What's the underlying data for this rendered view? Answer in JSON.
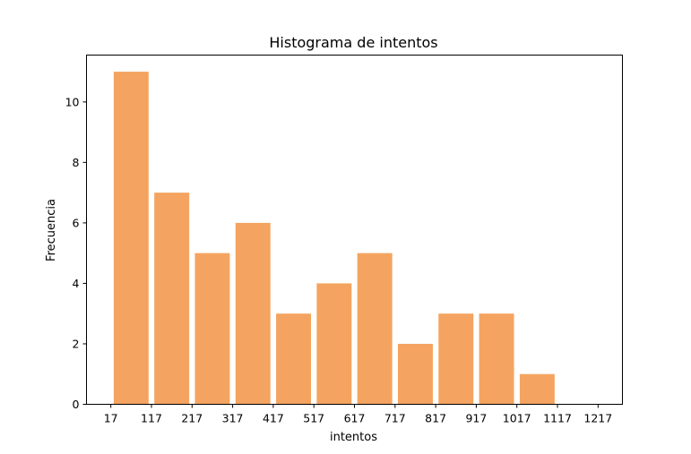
{
  "chart_data": {
    "type": "bar",
    "title": "Histograma de intentos",
    "xlabel": "intentos",
    "ylabel": "Frecuencia",
    "bin_edges": [
      17,
      117,
      217,
      317,
      417,
      517,
      617,
      717,
      817,
      917,
      1017,
      1117,
      1217
    ],
    "values": [
      11,
      7,
      5,
      6,
      3,
      4,
      5,
      2,
      3,
      3,
      1,
      0
    ],
    "x_ticks": [
      "17",
      "117",
      "217",
      "317",
      "417",
      "517",
      "617",
      "717",
      "817",
      "917",
      "1017",
      "1117",
      "1217"
    ],
    "y_ticks": [
      0,
      2,
      4,
      6,
      8,
      10
    ],
    "xlim": [
      -43,
      1277
    ],
    "ylim": [
      0,
      11.55
    ],
    "bar_color": "#f4a460",
    "grid": false
  }
}
